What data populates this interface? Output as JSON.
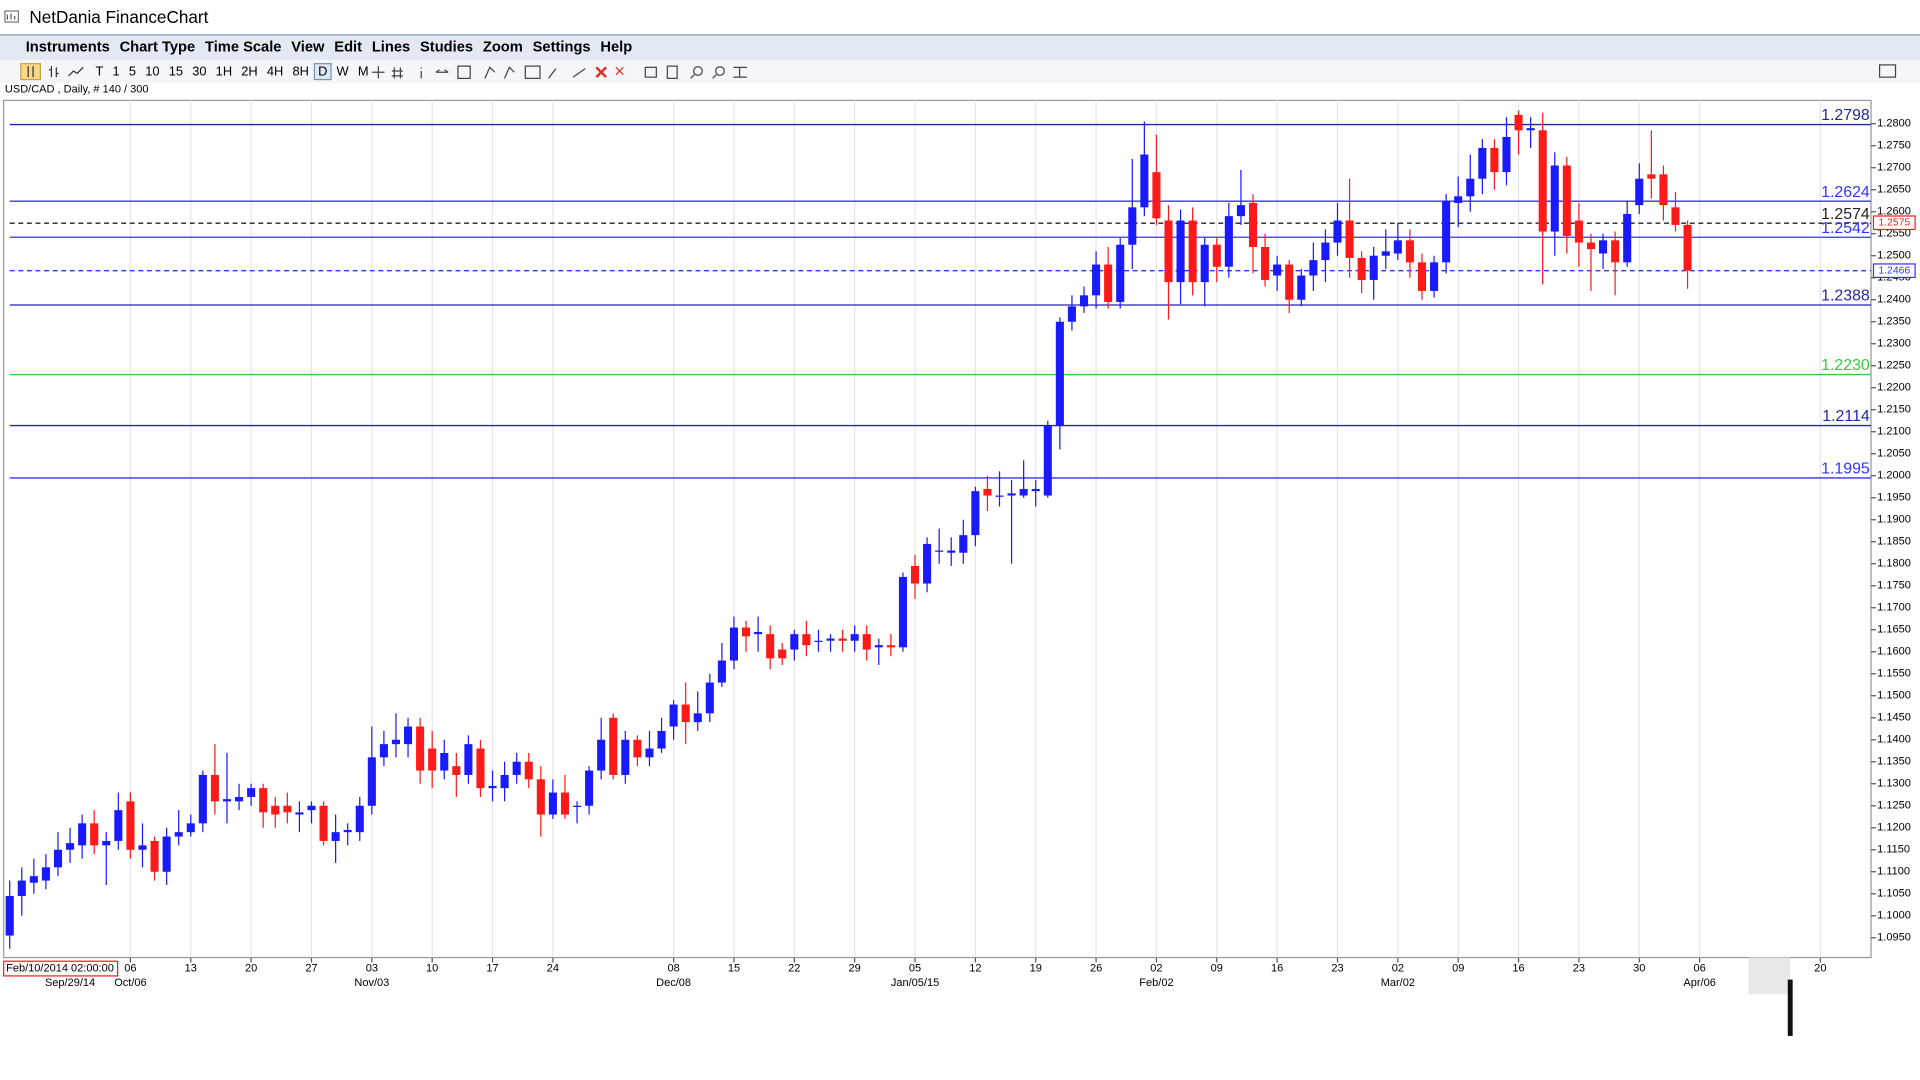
{
  "window_title": "NetDania FinanceChart",
  "menu": [
    "Instruments",
    "Chart Type",
    "Time Scale",
    "View",
    "Edit",
    "Lines",
    "Studies",
    "Zoom",
    "Settings",
    "Help"
  ],
  "timeframes": [
    "T",
    "1",
    "5",
    "10",
    "15",
    "30",
    "1H",
    "2H",
    "4H",
    "8H",
    "D",
    "W",
    "M"
  ],
  "chart_data": {
    "type": "candlestick",
    "info": "USD/CAD , Daily, # 140 / 300",
    "cursor_time": "Feb/10/2014 02:00:00",
    "up_color": "#1a1aff",
    "down_color": "#ff1a1a",
    "xgrid": true,
    "xlim": [
      -0.5,
      154.2
    ],
    "ylim": [
      1.0905,
      1.2853
    ],
    "open": [
      1.0955,
      1.1045,
      1.1075,
      1.108,
      1.111,
      1.115,
      1.116,
      1.121,
      1.116,
      1.117,
      1.126,
      1.115,
      1.117,
      1.11,
      1.118,
      1.119,
      1.121,
      1.132,
      1.126,
      1.126,
      1.127,
      1.129,
      1.125,
      1.125,
      1.123,
      1.124,
      1.125,
      1.117,
      1.119,
      1.119,
      1.125,
      1.136,
      1.139,
      1.139,
      1.143,
      1.138,
      1.133,
      1.134,
      1.132,
      1.138,
      1.129,
      1.129,
      1.132,
      1.135,
      1.131,
      1.123,
      1.128,
      1.125,
      1.125,
      1.133,
      1.145,
      1.132,
      1.14,
      1.136,
      1.138,
      1.143,
      1.148,
      1.144,
      1.146,
      1.153,
      1.158,
      1.1655,
      1.164,
      1.164,
      1.1605,
      1.1605,
      1.164,
      1.1625,
      1.1625,
      1.163,
      1.1625,
      1.164,
      1.161,
      1.1615,
      1.161,
      1.1795,
      1.1755,
      1.183,
      1.1825,
      1.1825,
      1.1865,
      1.197,
      1.1955,
      1.1955,
      1.1955,
      1.1965,
      1.1955,
      1.2115,
      1.235,
      1.2385,
      1.241,
      1.248,
      1.2395,
      1.2525,
      1.261,
      1.269,
      1.258,
      1.244,
      1.258,
      1.244,
      1.2525,
      1.2475,
      1.259,
      1.262,
      1.252,
      1.2455,
      1.248,
      1.24,
      1.2455,
      1.249,
      1.253,
      1.258,
      1.2495,
      1.2445,
      1.25,
      1.2505,
      1.2535,
      1.2485,
      1.242,
      1.2485,
      1.262,
      1.2635,
      1.2675,
      1.2745,
      1.269,
      1.282,
      1.2785,
      1.2785,
      1.2555,
      1.2705,
      1.258,
      1.253,
      1.2505,
      1.2535,
      1.2485,
      1.2615,
      1.2685,
      1.2685,
      1.261,
      1.257
    ],
    "high": [
      1.108,
      1.111,
      1.113,
      1.114,
      1.119,
      1.12,
      1.123,
      1.124,
      1.119,
      1.128,
      1.128,
      1.121,
      1.118,
      1.12,
      1.124,
      1.123,
      1.133,
      1.139,
      1.137,
      1.13,
      1.13,
      1.13,
      1.127,
      1.128,
      1.126,
      1.126,
      1.126,
      1.123,
      1.121,
      1.127,
      1.143,
      1.142,
      1.146,
      1.145,
      1.145,
      1.142,
      1.14,
      1.137,
      1.141,
      1.14,
      1.133,
      1.135,
      1.137,
      1.137,
      1.134,
      1.131,
      1.132,
      1.126,
      1.134,
      1.145,
      1.146,
      1.142,
      1.141,
      1.142,
      1.145,
      1.149,
      1.153,
      1.151,
      1.155,
      1.162,
      1.168,
      1.167,
      1.168,
      1.166,
      1.162,
      1.165,
      1.167,
      1.165,
      1.164,
      1.165,
      1.166,
      1.166,
      1.163,
      1.164,
      1.178,
      1.182,
      1.186,
      1.188,
      1.186,
      1.19,
      1.1975,
      1.2,
      1.201,
      1.199,
      1.2035,
      1.199,
      1.2125,
      1.236,
      1.241,
      1.243,
      1.251,
      1.252,
      1.254,
      1.272,
      1.2805,
      1.2775,
      1.2615,
      1.2605,
      1.261,
      1.254,
      1.254,
      1.262,
      1.2695,
      1.264,
      1.255,
      1.25,
      1.249,
      1.247,
      1.253,
      1.256,
      1.262,
      1.2675,
      1.251,
      1.252,
      1.256,
      1.2575,
      1.256,
      1.2505,
      1.25,
      1.264,
      1.268,
      1.273,
      1.2765,
      1.2765,
      1.2815,
      1.283,
      1.2815,
      1.2825,
      1.2735,
      1.2725,
      1.262,
      1.255,
      1.255,
      1.2555,
      1.2625,
      1.271,
      1.2785,
      1.2705,
      1.2645,
      1.258
    ],
    "low": [
      1.0925,
      1.1,
      1.105,
      1.106,
      1.109,
      1.112,
      1.113,
      1.114,
      1.107,
      1.115,
      1.113,
      1.111,
      1.108,
      1.107,
      1.116,
      1.118,
      1.119,
      1.123,
      1.121,
      1.124,
      1.125,
      1.12,
      1.12,
      1.121,
      1.119,
      1.121,
      1.116,
      1.112,
      1.116,
      1.117,
      1.123,
      1.134,
      1.136,
      1.136,
      1.13,
      1.129,
      1.131,
      1.127,
      1.13,
      1.127,
      1.126,
      1.126,
      1.13,
      1.129,
      1.118,
      1.122,
      1.122,
      1.121,
      1.123,
      1.131,
      1.131,
      1.13,
      1.134,
      1.134,
      1.137,
      1.14,
      1.139,
      1.142,
      1.144,
      1.152,
      1.156,
      1.16,
      1.16,
      1.156,
      1.157,
      1.158,
      1.159,
      1.16,
      1.16,
      1.16,
      1.16,
      1.158,
      1.157,
      1.159,
      1.16,
      1.172,
      1.1735,
      1.18,
      1.1795,
      1.18,
      1.184,
      1.192,
      1.193,
      1.18,
      1.195,
      1.193,
      1.195,
      1.206,
      1.233,
      1.237,
      1.238,
      1.238,
      1.238,
      1.247,
      1.259,
      1.257,
      1.2355,
      1.239,
      1.241,
      1.2385,
      1.244,
      1.245,
      1.257,
      1.246,
      1.243,
      1.242,
      1.237,
      1.2385,
      1.242,
      1.244,
      1.25,
      1.245,
      1.2415,
      1.24,
      1.247,
      1.249,
      1.245,
      1.24,
      1.2405,
      1.246,
      1.2565,
      1.26,
      1.264,
      1.265,
      1.266,
      1.273,
      1.2745,
      1.2435,
      1.25,
      1.2505,
      1.2475,
      1.242,
      1.247,
      1.241,
      1.2475,
      1.2595,
      1.263,
      1.258,
      1.2555,
      1.2425
    ],
    "close": [
      1.1045,
      1.108,
      1.109,
      1.111,
      1.115,
      1.1165,
      1.121,
      1.116,
      1.117,
      1.124,
      1.115,
      1.116,
      1.11,
      1.118,
      1.119,
      1.121,
      1.132,
      1.126,
      1.1265,
      1.127,
      1.129,
      1.1235,
      1.123,
      1.1235,
      1.1235,
      1.125,
      1.117,
      1.119,
      1.1195,
      1.125,
      1.136,
      1.139,
      1.14,
      1.143,
      1.133,
      1.133,
      1.137,
      1.132,
      1.139,
      1.129,
      1.1295,
      1.132,
      1.135,
      1.131,
      1.123,
      1.128,
      1.123,
      1.125,
      1.133,
      1.14,
      1.132,
      1.14,
      1.136,
      1.138,
      1.142,
      1.148,
      1.144,
      1.146,
      1.153,
      1.158,
      1.1655,
      1.1635,
      1.1645,
      1.1585,
      1.1585,
      1.164,
      1.1615,
      1.1625,
      1.163,
      1.1625,
      1.164,
      1.1605,
      1.1615,
      1.161,
      1.177,
      1.1755,
      1.1845,
      1.183,
      1.183,
      1.1865,
      1.1965,
      1.1955,
      1.1955,
      1.196,
      1.197,
      1.197,
      1.2115,
      1.235,
      1.2385,
      1.241,
      1.248,
      1.2395,
      1.2525,
      1.261,
      1.273,
      1.2585,
      1.244,
      1.258,
      1.244,
      1.2525,
      1.2475,
      1.259,
      1.2615,
      1.252,
      1.2445,
      1.248,
      1.24,
      1.2455,
      1.249,
      1.253,
      1.258,
      1.2495,
      1.2445,
      1.25,
      1.251,
      1.2535,
      1.2485,
      1.242,
      1.2485,
      1.2625,
      1.2635,
      1.2675,
      1.2745,
      1.269,
      1.277,
      1.2785,
      1.279,
      1.2555,
      1.2705,
      1.2545,
      1.253,
      1.2515,
      1.2535,
      1.2485,
      1.2595,
      1.2675,
      1.2675,
      1.2615,
      1.257,
      1.2466
    ],
    "yticks": [
      {
        "value": 1.095,
        "label": "1.0950"
      },
      {
        "value": 1.1,
        "label": "1.1000"
      },
      {
        "value": 1.105,
        "label": "1.1050"
      },
      {
        "value": 1.11,
        "label": "1.1100"
      },
      {
        "value": 1.115,
        "label": "1.1150"
      },
      {
        "value": 1.12,
        "label": "1.1200"
      },
      {
        "value": 1.125,
        "label": "1.1250"
      },
      {
        "value": 1.13,
        "label": "1.1300"
      },
      {
        "value": 1.135,
        "label": "1.1350"
      },
      {
        "value": 1.14,
        "label": "1.1400"
      },
      {
        "value": 1.145,
        "label": "1.1450"
      },
      {
        "value": 1.15,
        "label": "1.1500"
      },
      {
        "value": 1.155,
        "label": "1.1550"
      },
      {
        "value": 1.16,
        "label": "1.1600"
      },
      {
        "value": 1.165,
        "label": "1.1650"
      },
      {
        "value": 1.17,
        "label": "1.1700"
      },
      {
        "value": 1.175,
        "label": "1.1750"
      },
      {
        "value": 1.18,
        "label": "1.1800"
      },
      {
        "value": 1.185,
        "label": "1.1850"
      },
      {
        "value": 1.19,
        "label": "1.1900"
      },
      {
        "value": 1.195,
        "label": "1.1950"
      },
      {
        "value": 1.2,
        "label": "1.2000"
      },
      {
        "value": 1.205,
        "label": "1.2050"
      },
      {
        "value": 1.21,
        "label": "1.2100"
      },
      {
        "value": 1.215,
        "label": "1.2150"
      },
      {
        "value": 1.22,
        "label": "1.2200"
      },
      {
        "value": 1.225,
        "label": "1.2250"
      },
      {
        "value": 1.23,
        "label": "1.2300"
      },
      {
        "value": 1.235,
        "label": "1.2350"
      },
      {
        "value": 1.24,
        "label": "1.2400"
      },
      {
        "value": 1.245,
        "label": "1.2450"
      },
      {
        "value": 1.25,
        "label": "1.2500"
      },
      {
        "value": 1.255,
        "label": "1.2550"
      },
      {
        "value": 1.26,
        "label": "1.2600"
      },
      {
        "value": 1.265,
        "label": "1.2650"
      },
      {
        "value": 1.27,
        "label": "1.2700"
      },
      {
        "value": 1.275,
        "label": "1.2750"
      },
      {
        "value": 1.28,
        "label": "1.2800"
      }
    ],
    "xticks": [
      {
        "value": 10,
        "label": "06"
      },
      {
        "value": 15,
        "label": "13"
      },
      {
        "value": 20,
        "label": "20"
      },
      {
        "value": 25,
        "label": "27"
      },
      {
        "value": 30,
        "label": "03"
      },
      {
        "value": 35,
        "label": "10"
      },
      {
        "value": 40,
        "label": "17"
      },
      {
        "value": 45,
        "label": "24"
      },
      {
        "value": 55,
        "label": "08"
      },
      {
        "value": 60,
        "label": "15"
      },
      {
        "value": 65,
        "label": "22"
      },
      {
        "value": 70,
        "label": "29"
      },
      {
        "value": 75,
        "label": "05"
      },
      {
        "value": 80,
        "label": "12"
      },
      {
        "value": 85,
        "label": "19"
      },
      {
        "value": 90,
        "label": "26"
      },
      {
        "value": 95,
        "label": "02"
      },
      {
        "value": 100,
        "label": "09"
      },
      {
        "value": 105,
        "label": "16"
      },
      {
        "value": 110,
        "label": "23"
      },
      {
        "value": 115,
        "label": "02"
      },
      {
        "value": 120,
        "label": "09"
      },
      {
        "value": 125,
        "label": "16"
      },
      {
        "value": 130,
        "label": "23"
      },
      {
        "value": 135,
        "label": "30"
      },
      {
        "value": 140,
        "label": "06"
      },
      {
        "value": 150,
        "label": "20"
      }
    ],
    "xticks_major": [
      {
        "value": 5,
        "label": "Sep/29/14"
      },
      {
        "value": 10,
        "label": "Oct/06"
      },
      {
        "value": 30,
        "label": "Nov/03"
      },
      {
        "value": 55,
        "label": "Dec/08"
      },
      {
        "value": 75,
        "label": "Jan/05/15"
      },
      {
        "value": 95,
        "label": "Feb/02"
      },
      {
        "value": 115,
        "label": "Mar/02"
      },
      {
        "value": 140,
        "label": "Apr/06"
      }
    ],
    "levels": [
      {
        "value": 1.2798,
        "color": "#2424b0",
        "style": "solid"
      },
      {
        "value": 1.2624,
        "color": "#3333ff",
        "style": "solid"
      },
      {
        "value": 1.2574,
        "color": "#222222",
        "style": "dashed"
      },
      {
        "value": 1.2542,
        "color": "#3333ff",
        "style": "solid"
      },
      {
        "value": 1.2388,
        "color": "#2424b0",
        "style": "solid"
      },
      {
        "value": 1.223,
        "label": "1.2230",
        "color": "#33cc33",
        "style": "solid"
      },
      {
        "value": 1.2114,
        "color": "#2424b0",
        "style": "solid"
      },
      {
        "value": 1.1995,
        "color": "#3333ff",
        "style": "solid"
      }
    ],
    "price_markers": [
      {
        "value": 1.2575,
        "color": "#ff1a1a",
        "dashed_line": false
      },
      {
        "value": 1.2466,
        "color": "#3333ff",
        "dashed_line": true
      }
    ]
  }
}
